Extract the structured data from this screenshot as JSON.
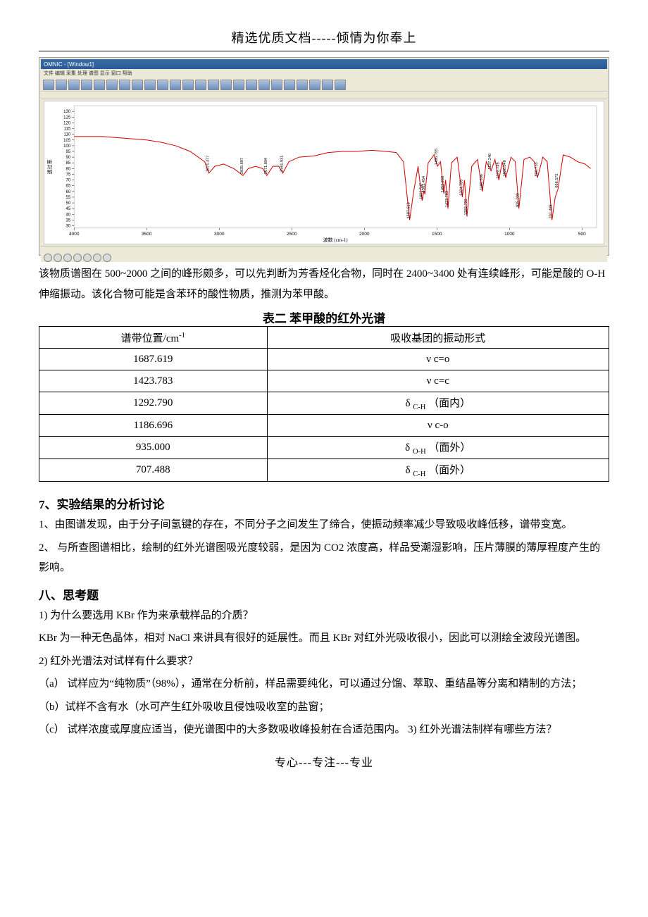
{
  "header": "精选优质文档-----倾情为你奉上",
  "footer": "专心---专注---专业",
  "spectrum_window": {
    "titlebar": "OMNIC - [Window1]",
    "menubar": "文件 编辑 采集 处理 谱图 显示 窗口 帮助",
    "y_axis_label": "透过率",
    "x_axis_label": "波数 (cm-1)",
    "plot": {
      "line_color": "#d40000",
      "bg_color": "#ffffff",
      "x_min": 400,
      "x_max": 4000,
      "y_min": 28,
      "y_max": 135,
      "x_ticks": [
        4000,
        3500,
        3000,
        2500,
        2000,
        1500,
        1000,
        500
      ],
      "y_ticks": [
        30,
        35,
        40,
        45,
        50,
        55,
        60,
        65,
        70,
        75,
        80,
        85,
        90,
        95,
        100,
        105,
        110,
        115,
        120,
        125,
        130
      ],
      "peak_labels": [
        "3071.377",
        "2835.687",
        "2671.894",
        "2561.831",
        "1687.619",
        "1601.547",
        "1583.454",
        "1495.755",
        "1452.290",
        "1423.783",
        "1324.755",
        "1292.790",
        "1186.696",
        "1127.246",
        "1072.745",
        "1026.040",
        "935.000",
        "806.735",
        "707.488",
        "666.575"
      ],
      "peak_x": [
        3071,
        2836,
        2672,
        2562,
        1688,
        1602,
        1583,
        1496,
        1452,
        1424,
        1325,
        1293,
        1187,
        1127,
        1073,
        1026,
        935,
        807,
        707,
        666
      ],
      "series": [
        [
          4000,
          108
        ],
        [
          3900,
          108
        ],
        [
          3800,
          108
        ],
        [
          3700,
          107
        ],
        [
          3600,
          106
        ],
        [
          3500,
          105
        ],
        [
          3400,
          103
        ],
        [
          3300,
          100
        ],
        [
          3200,
          95
        ],
        [
          3100,
          86
        ],
        [
          3071,
          76
        ],
        [
          3030,
          82
        ],
        [
          2970,
          84
        ],
        [
          2900,
          80
        ],
        [
          2836,
          74
        ],
        [
          2800,
          80
        ],
        [
          2750,
          82
        ],
        [
          2700,
          80
        ],
        [
          2672,
          74
        ],
        [
          2630,
          82
        ],
        [
          2590,
          82
        ],
        [
          2562,
          76
        ],
        [
          2520,
          86
        ],
        [
          2450,
          90
        ],
        [
          2350,
          91
        ],
        [
          2250,
          94
        ],
        [
          2150,
          95
        ],
        [
          2050,
          95
        ],
        [
          1950,
          96
        ],
        [
          1850,
          95
        ],
        [
          1780,
          94
        ],
        [
          1730,
          86
        ],
        [
          1688,
          35
        ],
        [
          1660,
          60
        ],
        [
          1630,
          82
        ],
        [
          1602,
          52
        ],
        [
          1590,
          60
        ],
        [
          1583,
          58
        ],
        [
          1560,
          85
        ],
        [
          1520,
          92
        ],
        [
          1496,
          82
        ],
        [
          1475,
          86
        ],
        [
          1452,
          58
        ],
        [
          1440,
          70
        ],
        [
          1424,
          45
        ],
        [
          1400,
          85
        ],
        [
          1360,
          90
        ],
        [
          1325,
          55
        ],
        [
          1310,
          70
        ],
        [
          1293,
          38
        ],
        [
          1260,
          82
        ],
        [
          1220,
          88
        ],
        [
          1187,
          60
        ],
        [
          1160,
          86
        ],
        [
          1127,
          78
        ],
        [
          1100,
          88
        ],
        [
          1073,
          70
        ],
        [
          1050,
          86
        ],
        [
          1026,
          72
        ],
        [
          990,
          90
        ],
        [
          960,
          86
        ],
        [
          935,
          45
        ],
        [
          900,
          88
        ],
        [
          860,
          90
        ],
        [
          830,
          86
        ],
        [
          807,
          72
        ],
        [
          770,
          90
        ],
        [
          740,
          86
        ],
        [
          707,
          35
        ],
        [
          685,
          55
        ],
        [
          666,
          62
        ],
        [
          630,
          92
        ],
        [
          580,
          90
        ],
        [
          530,
          86
        ],
        [
          480,
          84
        ],
        [
          440,
          80
        ]
      ]
    }
  },
  "para1": "该物质谱图在 500~2000 之间的峰形颇多，可以先判断为芳香烃化合物，同时在 2400~3400 处有连续峰形，可能是酸的 O-H 伸缩振动。该化合物可能是含苯环的酸性物质，推测为苯甲酸。",
  "table2": {
    "title": "表二  苯甲酸的红外光谱",
    "header_left": "谱带位置/cm",
    "header_left_sup": "-1",
    "header_right": "吸收基团的振动形式",
    "rows": [
      {
        "l": "1687.619",
        "r": "ν c=o"
      },
      {
        "l": "1423.783",
        "r": "ν c=c"
      },
      {
        "l": "1292.790",
        "r_prefix": "δ ",
        "r_sub": "C-H",
        "r_suffix": "   （面内）"
      },
      {
        "l": "1186.696",
        "r": "ν c-o"
      },
      {
        "l": "935.000",
        "r_prefix": "δ ",
        "r_sub": "O-H",
        "r_suffix": "   （面外）"
      },
      {
        "l": "707.488",
        "r_prefix": "δ ",
        "r_sub": "C-H",
        "r_suffix": "   （面外）"
      }
    ]
  },
  "section7_head": "7、实验结果的分析讨论",
  "section7_p1": "1、由图谱发现，由于分子间氢键的存在，不同分子之间发生了缔合，使振动频率减少导致吸收峰低移，谱带变宽。",
  "section7_p2": "2、  与所查图谱相比，绘制的红外光谱图吸光度较弱，是因为 CO2   浓度高，样品受潮湿影响，压片薄膜的薄厚程度产生的影响。",
  "section8_head": "八、思考题",
  "q1": "1) 为什么要选用 KBr 作为来承载样品的介质？",
  "a1": " KBr 为一种无色晶体，相对 NaCl 来讲具有很好的延展性。而且 KBr 对红外光吸收很小，因此可以测绘全波段光谱图。",
  "q2": "2) 红外光谱法对试样有什么要求？",
  "a2a": "（a）   试样应为“纯物质”（98%），通常在分析前，样品需要纯化，可以通过分馏、萃取、重结晶等分离和精制的方法；",
  "a2b": "（b）试样不含有水（水可产生红外吸收且侵蚀吸收室的盐窗；",
  "a2c": "（c）  试样浓度或厚度应适当，使光谱图中的大多数吸收峰投射在合适范围内。  3)   红外光谱法制样有哪些方法？"
}
